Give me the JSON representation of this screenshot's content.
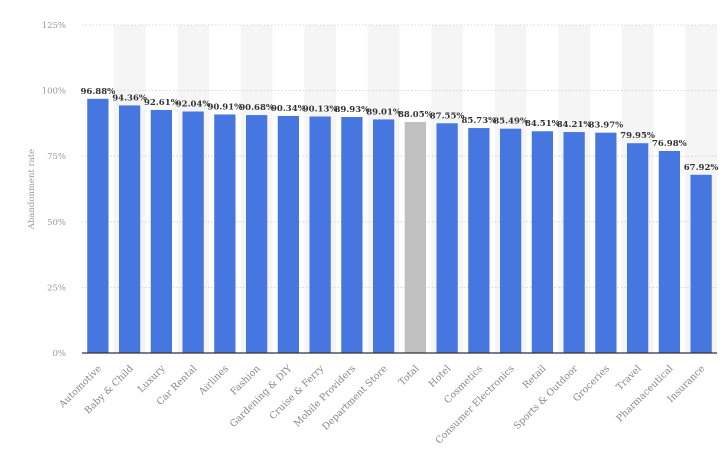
{
  "chart_data": {
    "type": "bar",
    "ylabel": "Abandonment rate",
    "xlabel": "",
    "ylim": [
      0,
      125
    ],
    "yticks": [
      "0%",
      "25%",
      "50%",
      "75%",
      "100%",
      "125%"
    ],
    "grid": true,
    "categories": [
      "Automotive",
      "Baby & Child",
      "Luxury",
      "Car Rental",
      "Airlines",
      "Fashion",
      "Gardening & DIY",
      "Cruise & Ferry",
      "Mobile Providers",
      "Department Store",
      "Total",
      "Hotel",
      "Cosmetics",
      "Consumer Electronics",
      "Retail",
      "Sports & Outdoor",
      "Groceries",
      "Travel",
      "Pharmaceutical",
      "Insurance"
    ],
    "values": [
      96.88,
      94.36,
      92.61,
      92.04,
      90.91,
      90.68,
      90.34,
      90.13,
      89.93,
      89.01,
      88.05,
      87.55,
      85.73,
      85.49,
      84.51,
      84.21,
      83.97,
      79.95,
      76.98,
      67.92
    ],
    "data_labels": [
      "96.88%",
      "94.36%",
      "92.61%",
      "92.04%",
      "90.91%",
      "90.68%",
      "90.34%",
      "90.13%",
      "89.93%",
      "89.01%",
      "88.05%",
      "87.55%",
      "85.73%",
      "85.49%",
      "84.51%",
      "84.21%",
      "83.97%",
      "79.95%",
      "76.98%",
      "67.92%"
    ],
    "colors": {
      "bar": "#4677e0",
      "highlight": "#c0c0c0",
      "band": "#f5f5f5",
      "grid": "#cccccc",
      "axis": "#333333"
    },
    "highlight_category": "Total"
  }
}
